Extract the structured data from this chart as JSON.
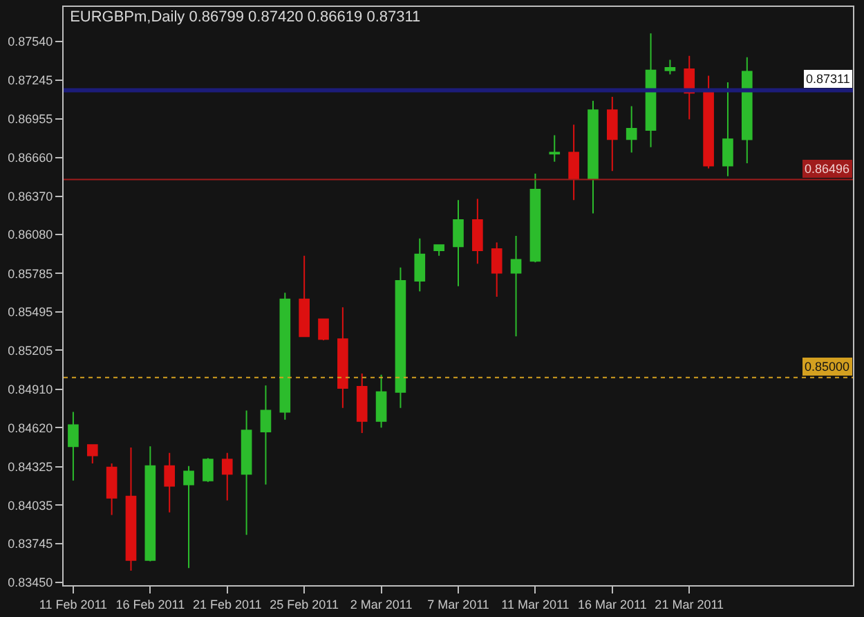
{
  "chart_data": {
    "type": "candlestick",
    "title": "EURGBPm,Daily 0.86799 0.87420 0.86619 0.87311",
    "categories": [
      "11 Feb 2011",
      null,
      null,
      null,
      "16 Feb 2011",
      null,
      null,
      null,
      "21 Feb 2011",
      null,
      null,
      null,
      "25 Feb 2011",
      null,
      null,
      null,
      "2 Mar 2011",
      null,
      null,
      null,
      "7 Mar 2011",
      null,
      null,
      null,
      "11 Mar 2011",
      null,
      null,
      null,
      "16 Mar 2011",
      null,
      null,
      null,
      "21 Mar 2011",
      null,
      null,
      null
    ],
    "ohlc": [
      [
        0.8448,
        0.8474,
        0.8422,
        0.8464
      ],
      [
        0.8449,
        0.8449,
        0.8435,
        0.8441
      ],
      [
        0.8432,
        0.8435,
        0.8396,
        0.8409
      ],
      [
        0.841,
        0.8447,
        0.8354,
        0.8362
      ],
      [
        0.8362,
        0.8448,
        0.8361,
        0.8433
      ],
      [
        0.8433,
        0.8443,
        0.8398,
        0.8418
      ],
      [
        0.8419,
        0.8433,
        0.8356,
        0.8429
      ],
      [
        0.8422,
        0.8439,
        0.8421,
        0.8438
      ],
      [
        0.8438,
        0.8443,
        0.8407,
        0.8427
      ],
      [
        0.8427,
        0.8475,
        0.8381,
        0.846
      ],
      [
        0.8459,
        0.8494,
        0.8419,
        0.8475
      ],
      [
        0.8474,
        0.8564,
        0.8468,
        0.8559
      ],
      [
        0.8559,
        0.8592,
        0.8531,
        0.8531
      ],
      [
        0.8544,
        0.8544,
        0.8528,
        0.8529
      ],
      [
        0.8529,
        0.8553,
        0.8477,
        0.8492
      ],
      [
        0.8493,
        0.8503,
        0.8458,
        0.8467
      ],
      [
        0.8467,
        0.8502,
        0.8462,
        0.8489
      ],
      [
        0.8489,
        0.8583,
        0.8477,
        0.8573
      ],
      [
        0.8573,
        0.8605,
        0.8565,
        0.8593
      ],
      [
        0.8596,
        0.86,
        0.8592,
        0.86
      ],
      [
        0.8599,
        0.8634,
        0.8569,
        0.8619
      ],
      [
        0.8619,
        0.8635,
        0.8586,
        0.8596
      ],
      [
        0.8597,
        0.8602,
        0.8561,
        0.8579
      ],
      [
        0.8579,
        0.8607,
        0.8531,
        0.8589
      ],
      [
        0.8588,
        0.8654,
        0.8587,
        0.8642
      ],
      [
        0.8669,
        0.8683,
        0.8663,
        0.867
      ],
      [
        0.867,
        0.8691,
        0.8634,
        0.865
      ],
      [
        0.865,
        0.8709,
        0.8624,
        0.8702
      ],
      [
        0.8702,
        0.8712,
        0.8656,
        0.868
      ],
      [
        0.868,
        0.8705,
        0.867,
        0.8688
      ],
      [
        0.8687,
        0.876,
        0.8674,
        0.8732
      ],
      [
        0.8732,
        0.874,
        0.8729,
        0.8734
      ],
      [
        0.8733,
        0.8743,
        0.8695,
        0.8715
      ],
      [
        0.8716,
        0.8728,
        0.8658,
        0.866
      ],
      [
        0.866,
        0.8723,
        0.8652,
        0.868
      ],
      [
        0.86799,
        0.8742,
        0.86619,
        0.87311
      ]
    ],
    "colors": [
      "#2cbc2c",
      "#dd1010",
      "#dd1010",
      "#dd1010",
      "#2cbc2c",
      "#dd1010",
      "#2cbc2c",
      "#2cbc2c",
      "#dd1010",
      "#2cbc2c",
      "#2cbc2c",
      "#2cbc2c",
      "#dd1010",
      "#dd1010",
      "#dd1010",
      "#dd1010",
      "#2cbc2c",
      "#2cbc2c",
      "#2cbc2c",
      "#2cbc2c",
      "#2cbc2c",
      "#dd1010",
      "#dd1010",
      "#2cbc2c",
      "#2cbc2c",
      "#2cbc2c",
      "#dd1010",
      "#2cbc2c",
      "#dd1010",
      "#2cbc2c",
      "#2cbc2c",
      "#2cbc2c",
      "#dd1010",
      "#dd1010",
      "#2cbc2c",
      "#2cbc2c"
    ],
    "ylim": [
      0.8343,
      0.878
    ],
    "yticks": [
      {
        "value": 0.8754,
        "label": "0.87540"
      },
      {
        "value": 0.87245,
        "label": "0.87245"
      },
      {
        "value": 0.86955,
        "label": "0.86955"
      },
      {
        "value": 0.8666,
        "label": "0.86660"
      },
      {
        "value": 0.8637,
        "label": "0.86370"
      },
      {
        "value": 0.8608,
        "label": "0.86080"
      },
      {
        "value": 0.85785,
        "label": "0.85785"
      },
      {
        "value": 0.85495,
        "label": "0.85495"
      },
      {
        "value": 0.85205,
        "label": "0.85205"
      },
      {
        "value": 0.8491,
        "label": "0.84910"
      },
      {
        "value": 0.8462,
        "label": "0.84620"
      },
      {
        "value": 0.84325,
        "label": "0.84325"
      },
      {
        "value": 0.84035,
        "label": "0.84035"
      },
      {
        "value": 0.83745,
        "label": "0.83745"
      },
      {
        "value": 0.8345,
        "label": "0.83450"
      }
    ],
    "ref_lines": [
      {
        "axis": "y",
        "value": 0.86496,
        "label": "0.86496",
        "color": "#a01c1c",
        "line_style": "solid"
      },
      {
        "axis": "y",
        "value": 0.85,
        "label": "0.85000",
        "color": "#d4a020",
        "line_style": "dotted"
      },
      {
        "axis": "y",
        "value": 0.8717,
        "color": "#1c1c7a",
        "line_style": "solid"
      }
    ],
    "annotations": [
      "0.87311"
    ],
    "grid": false,
    "legend": false
  }
}
